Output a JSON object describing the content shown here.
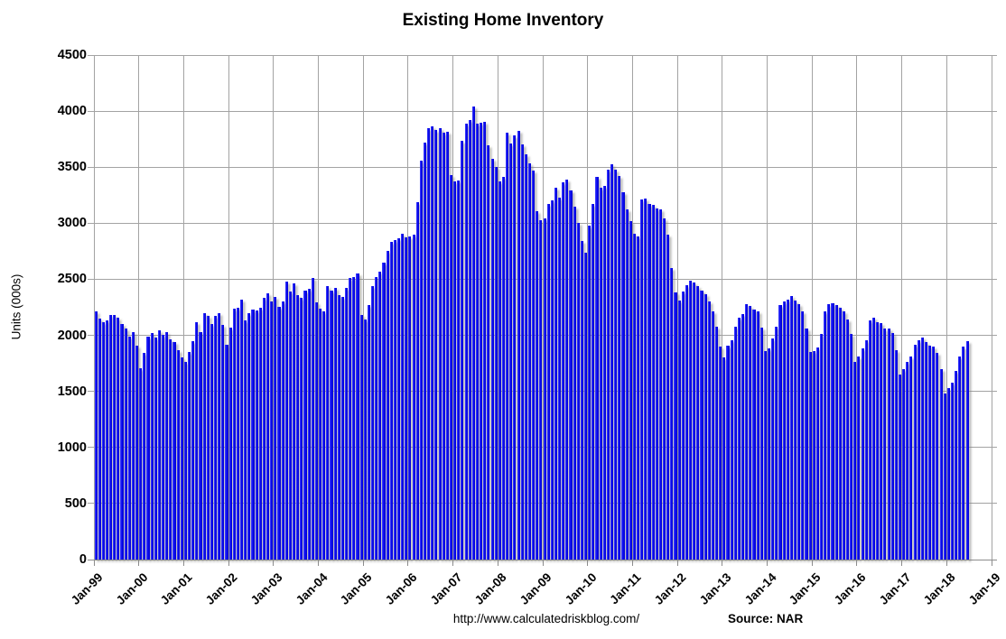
{
  "title": "Existing Home Inventory",
  "footer": {
    "url": "http://www.calculatedriskblog.com/",
    "source": "Source: NAR"
  },
  "colors": {
    "bar_blue": "#0000f0",
    "gridline_gray": "#a3a3a3",
    "text_black": "#000000"
  },
  "chart_data": {
    "type": "bar",
    "title": "Existing Home Inventory",
    "ylabel": "Units (000s)",
    "xlabel": "",
    "ylim": [
      0,
      4500
    ],
    "y_tick_step": 500,
    "y_ticks": [
      0,
      500,
      1000,
      1500,
      2000,
      2500,
      3000,
      3500,
      4000,
      4500
    ],
    "x_tick_labels": [
      "Jan-99",
      "Jan-00",
      "Jan-01",
      "Jan-02",
      "Jan-03",
      "Jan-04",
      "Jan-05",
      "Jan-06",
      "Jan-07",
      "Jan-08",
      "Jan-09",
      "Jan-10",
      "Jan-11",
      "Jan-12",
      "Jan-13",
      "Jan-14",
      "Jan-15",
      "Jan-16",
      "Jan-17",
      "Jan-18",
      "Jan-19"
    ],
    "frequency": "monthly",
    "start": "Jan-1999",
    "end": "Jun-2018",
    "grid": true,
    "legend": false,
    "series_by_year": [
      {
        "year": 1999,
        "values": [
          2210,
          2150,
          2115,
          2130,
          2185,
          2180,
          2155,
          2100,
          2060,
          1990,
          2025,
          1910
        ]
      },
      {
        "year": 2000,
        "values": [
          1710,
          1845,
          1990,
          2020,
          1980,
          2045,
          2005,
          2030,
          1965,
          1940,
          1870,
          1800
        ]
      },
      {
        "year": 2001,
        "values": [
          1765,
          1850,
          1950,
          2120,
          2030,
          2200,
          2170,
          2100,
          2175,
          2200,
          2090,
          1920
        ]
      },
      {
        "year": 2002,
        "values": [
          2070,
          2240,
          2250,
          2315,
          2135,
          2195,
          2230,
          2225,
          2250,
          2335,
          2375,
          2300
        ]
      },
      {
        "year": 2003,
        "values": [
          2345,
          2255,
          2300,
          2480,
          2390,
          2460,
          2360,
          2335,
          2400,
          2415,
          2510,
          2295
        ]
      },
      {
        "year": 2004,
        "values": [
          2240,
          2210,
          2440,
          2400,
          2420,
          2360,
          2340,
          2420,
          2510,
          2520,
          2550,
          2185
        ]
      },
      {
        "year": 2005,
        "values": [
          2145,
          2270,
          2440,
          2520,
          2565,
          2650,
          2750,
          2830,
          2850,
          2865,
          2910,
          2870
        ]
      },
      {
        "year": 2006,
        "values": [
          2885,
          2900,
          3190,
          3560,
          3720,
          3850,
          3865,
          3830,
          3850,
          3805,
          3815,
          3430
        ]
      },
      {
        "year": 2007,
        "values": [
          3375,
          3380,
          3735,
          3890,
          3920,
          4040,
          3890,
          3900,
          3905,
          3695,
          3575,
          3500
        ]
      },
      {
        "year": 2008,
        "values": [
          3375,
          3410,
          3805,
          3715,
          3780,
          3825,
          3700,
          3615,
          3535,
          3470,
          3110,
          3030
        ]
      },
      {
        "year": 2009,
        "values": [
          3045,
          3170,
          3205,
          3320,
          3230,
          3365,
          3390,
          3290,
          3145,
          3000,
          2845,
          2740
        ]
      },
      {
        "year": 2010,
        "values": [
          2980,
          3170,
          3410,
          3315,
          3330,
          3480,
          3525,
          3480,
          3425,
          3280,
          3120,
          3020
        ]
      },
      {
        "year": 2011,
        "values": [
          2905,
          2880,
          3210,
          3220,
          3170,
          3160,
          3130,
          3120,
          3040,
          2900,
          2600,
          2380
        ]
      },
      {
        "year": 2012,
        "values": [
          2310,
          2390,
          2450,
          2490,
          2470,
          2440,
          2400,
          2370,
          2300,
          2210,
          2080,
          1900
        ]
      },
      {
        "year": 2013,
        "values": [
          1800,
          1910,
          1960,
          2080,
          2160,
          2190,
          2280,
          2260,
          2230,
          2210,
          2070,
          1860
        ]
      },
      {
        "year": 2014,
        "values": [
          1880,
          1970,
          2080,
          2270,
          2300,
          2320,
          2350,
          2310,
          2280,
          2210,
          2060,
          1850
        ]
      },
      {
        "year": 2015,
        "values": [
          1860,
          1890,
          2010,
          2210,
          2280,
          2290,
          2270,
          2250,
          2210,
          2140,
          2010,
          1760
        ]
      },
      {
        "year": 2016,
        "values": [
          1810,
          1880,
          1960,
          2130,
          2160,
          2120,
          2110,
          2060,
          2060,
          2020,
          1870,
          1650
        ]
      },
      {
        "year": 2017,
        "values": [
          1700,
          1760,
          1810,
          1920,
          1960,
          1980,
          1940,
          1910,
          1900,
          1840,
          1700,
          1480
        ]
      },
      {
        "year": 2018,
        "values": [
          1530,
          1580,
          1680,
          1810,
          1900,
          1950
        ]
      }
    ]
  }
}
